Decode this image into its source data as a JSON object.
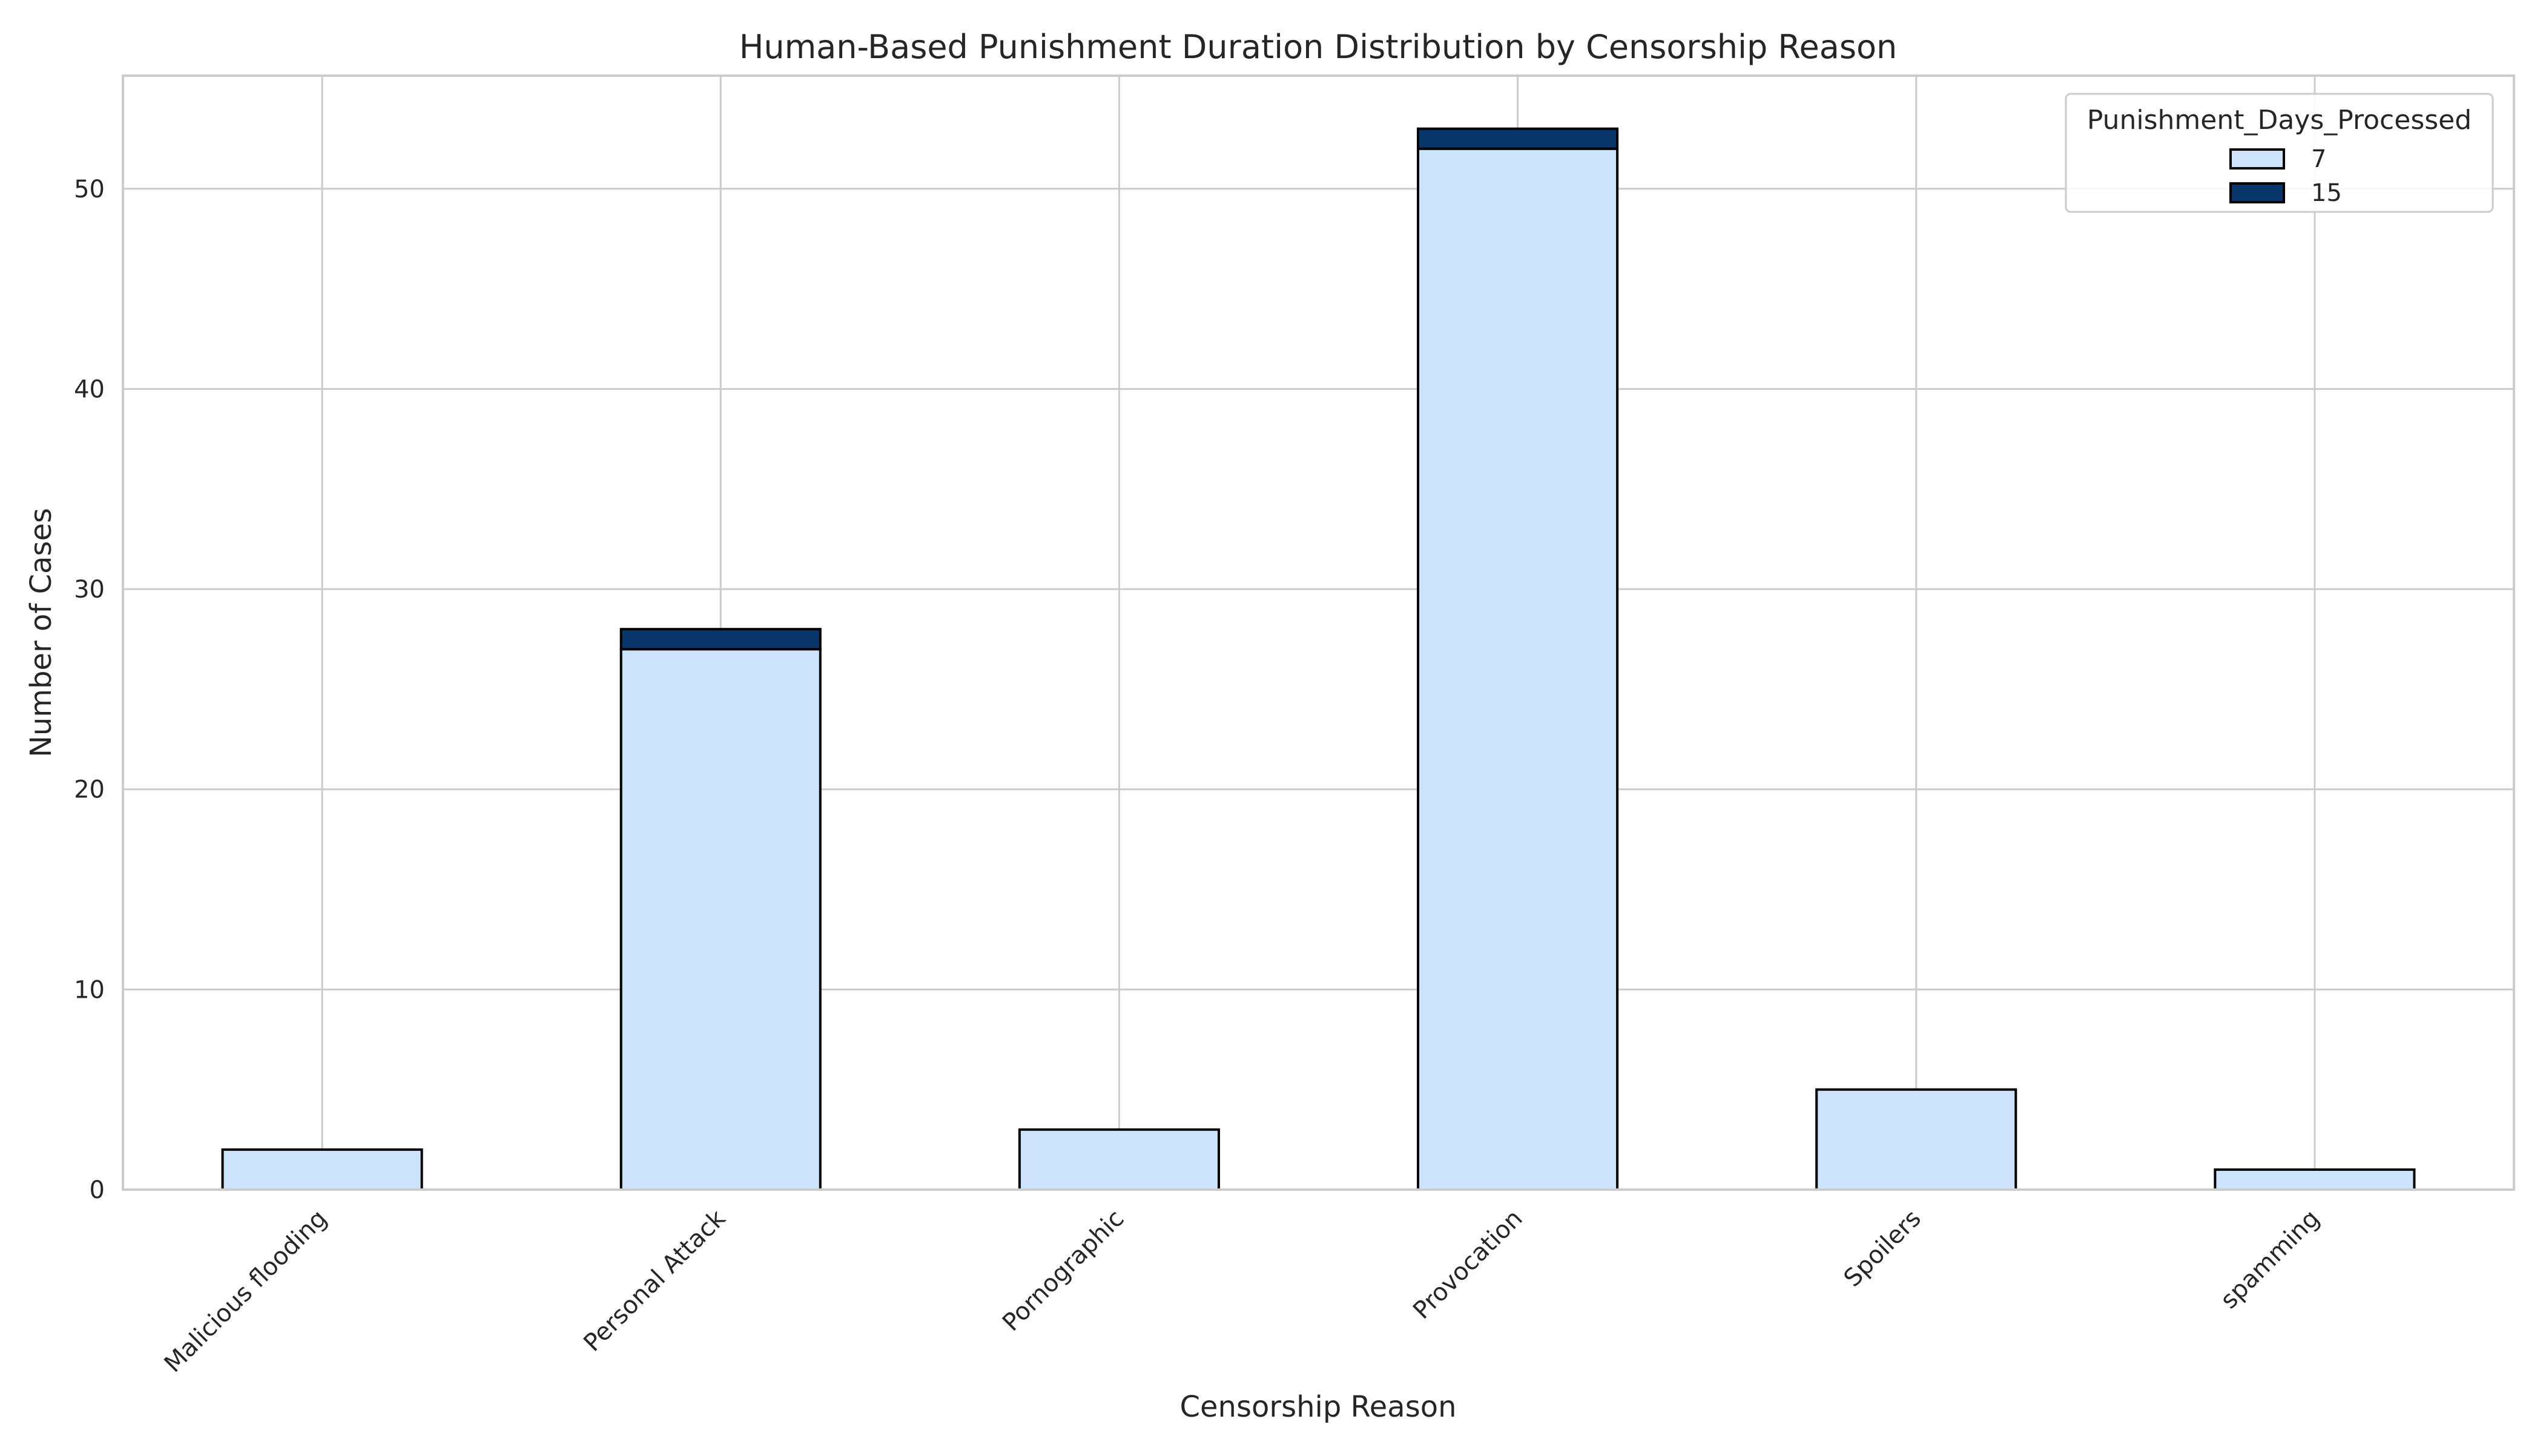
{
  "chart_data": {
    "type": "bar",
    "stacked": true,
    "title": "Human-Based Punishment Duration Distribution by Censorship Reason",
    "xlabel": "Censorship Reason",
    "ylabel": "Number of Cases",
    "categories": [
      "Malicious flooding",
      "Personal Attack",
      "Pornographic",
      "Provocation",
      "Spoilers",
      "spamming"
    ],
    "series": [
      {
        "name": "7",
        "values": [
          2,
          27,
          3,
          52,
          5,
          1
        ],
        "color": "#cce3fb"
      },
      {
        "name": "15",
        "values": [
          0,
          1,
          0,
          1,
          0,
          0
        ],
        "color": "#08366a"
      }
    ],
    "ylim": [
      0,
      55.65
    ],
    "yticks": [
      0,
      10,
      20,
      30,
      40,
      50
    ],
    "grid": true,
    "legend": {
      "title": "Punishment_Days_Processed",
      "placement": "upper right"
    }
  }
}
